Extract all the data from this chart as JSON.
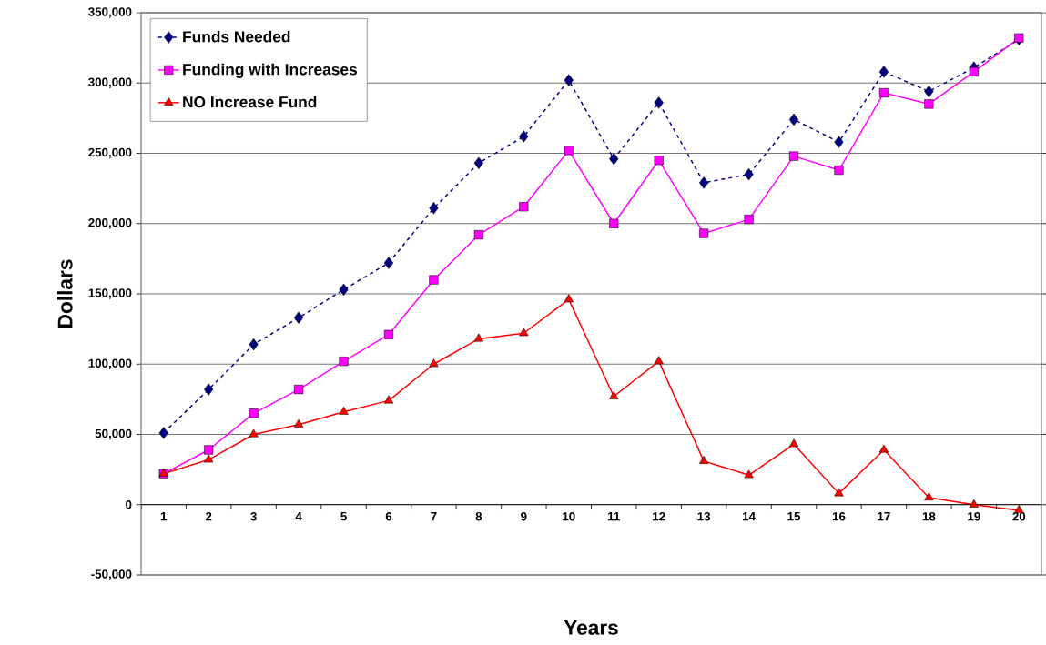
{
  "chart_data": {
    "type": "line",
    "xlabel": "Years",
    "ylabel": "Dollars",
    "categories": [
      "1",
      "2",
      "3",
      "4",
      "5",
      "6",
      "7",
      "8",
      "9",
      "10",
      "11",
      "12",
      "13",
      "14",
      "15",
      "16",
      "17",
      "18",
      "19",
      "20"
    ],
    "series": [
      {
        "name": "Funds Needed",
        "color": "#000080",
        "marker": "diamond",
        "line_style": "dashed",
        "values": [
          51000,
          82000,
          114000,
          133000,
          153000,
          172000,
          211000,
          243000,
          262000,
          302000,
          246000,
          286000,
          229000,
          235000,
          274000,
          258000,
          308000,
          294000,
          311000,
          331000
        ]
      },
      {
        "name": "Funding with Increases",
        "color": "#ff00ff",
        "marker": "square",
        "line_style": "solid",
        "values": [
          22000,
          39000,
          65000,
          82000,
          102000,
          121000,
          160000,
          192000,
          212000,
          252000,
          200000,
          245000,
          193000,
          203000,
          248000,
          238000,
          293000,
          285000,
          308000,
          332000
        ]
      },
      {
        "name": "NO Increase Fund",
        "color": "#ff0000",
        "marker": "triangle",
        "line_style": "solid",
        "values": [
          22000,
          32000,
          50000,
          57000,
          66000,
          74000,
          100000,
          118000,
          122000,
          146000,
          77000,
          102000,
          31000,
          21000,
          43000,
          8000,
          39000,
          5000,
          0,
          -4000
        ]
      }
    ],
    "ylim": [
      -50000,
      350000
    ],
    "yticks": [
      {
        "value": -50000,
        "label": "-50,000"
      },
      {
        "value": 0,
        "label": "0"
      },
      {
        "value": 50000,
        "label": "50,000"
      },
      {
        "value": 100000,
        "label": "100,000"
      },
      {
        "value": 150000,
        "label": "150,000"
      },
      {
        "value": 200000,
        "label": "200,000"
      },
      {
        "value": 250000,
        "label": "250,000"
      },
      {
        "value": 300000,
        "label": "300,000"
      },
      {
        "value": 350000,
        "label": "350,000"
      }
    ],
    "grid": "y",
    "legend": "top left"
  }
}
